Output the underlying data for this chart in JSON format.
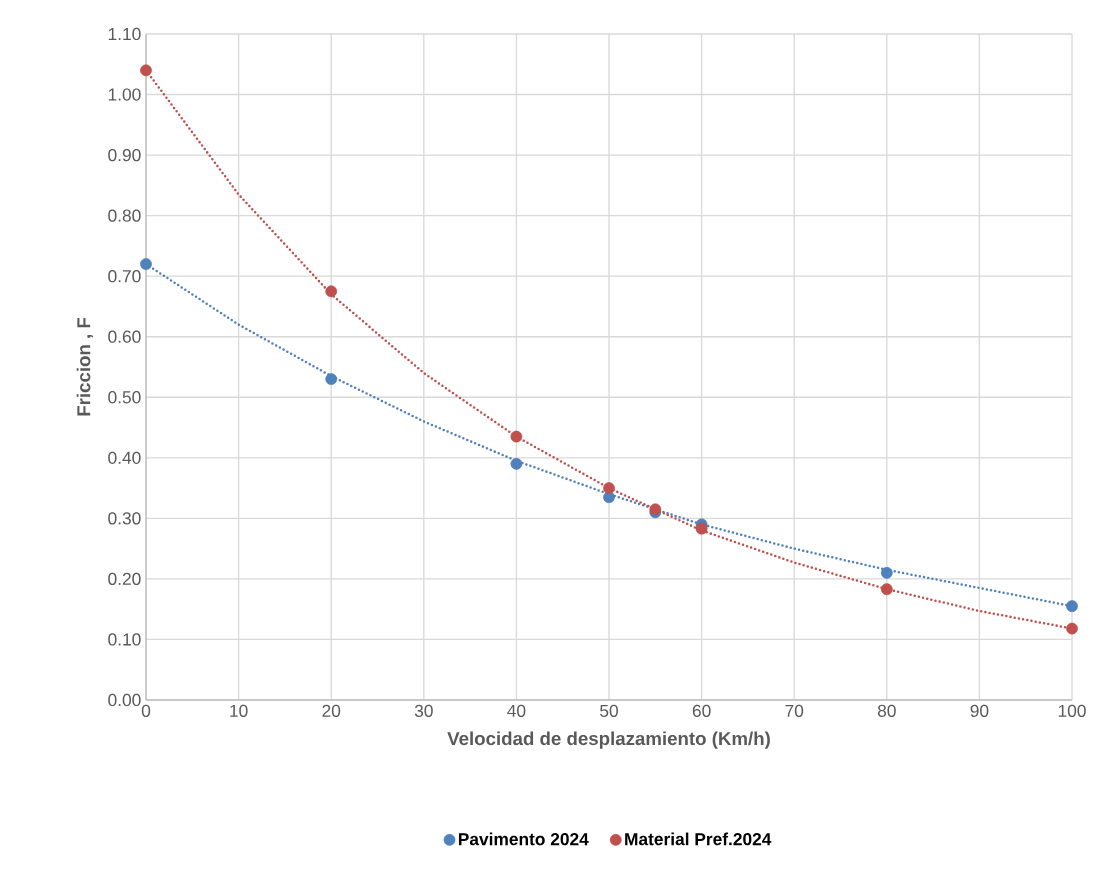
{
  "chart_data": {
    "type": "scatter",
    "xlabel": "Velocidad de desplazamiento (Km/h)",
    "ylabel": "Friccion , F",
    "xlim": [
      0,
      100
    ],
    "ylim": [
      0,
      1.1
    ],
    "xticks": [
      0,
      10,
      20,
      30,
      40,
      50,
      60,
      70,
      80,
      90,
      100
    ],
    "yticks": [
      {
        "value": 0,
        "label": "0.00"
      },
      {
        "value": 0.1,
        "label": "0.10"
      },
      {
        "value": 0.2,
        "label": "0.20"
      },
      {
        "value": 0.3,
        "label": "0.30"
      },
      {
        "value": 0.4,
        "label": "0.40"
      },
      {
        "value": 0.5,
        "label": "0.50"
      },
      {
        "value": 0.6,
        "label": "0.60"
      },
      {
        "value": 0.7,
        "label": "0.70"
      },
      {
        "value": 0.8,
        "label": "0.80"
      },
      {
        "value": 0.9,
        "label": "0.90"
      },
      {
        "value": 1.0,
        "label": "1.00"
      },
      {
        "value": 1.1,
        "label": "1.10"
      }
    ],
    "grid": true,
    "legend": "bottom",
    "marker": "circle",
    "series": [
      {
        "name": "Pavimento 2024",
        "color": "#4f81bd",
        "x": [
          0,
          20,
          40,
          50,
          55,
          60,
          80,
          100
        ],
        "values": [
          0.72,
          0.53,
          0.39,
          0.335,
          0.31,
          0.29,
          0.21,
          0.155
        ]
      },
      {
        "name": "Material Pref.2024",
        "color": "#c0504d",
        "x": [
          0,
          20,
          40,
          50,
          55,
          60,
          80,
          100
        ],
        "values": [
          1.04,
          0.675,
          0.435,
          0.35,
          0.315,
          0.283,
          0.183,
          0.118
        ]
      },
      {
        "type": "line",
        "color": "#4f81bd",
        "marker": "none",
        "line_style": "dotted",
        "x": [
          0,
          10,
          20,
          30,
          40,
          50,
          60,
          70,
          80,
          90,
          100
        ],
        "values": [
          0.72,
          0.62,
          0.535,
          0.46,
          0.395,
          0.34,
          0.29,
          0.25,
          0.215,
          0.185,
          0.155
        ]
      },
      {
        "type": "line",
        "color": "#c0504d",
        "marker": "none",
        "line_style": "dotted",
        "x": [
          0,
          10,
          20,
          30,
          40,
          50,
          60,
          70,
          80,
          90,
          100
        ],
        "values": [
          1.04,
          0.835,
          0.67,
          0.54,
          0.435,
          0.35,
          0.28,
          0.227,
          0.183,
          0.147,
          0.118
        ]
      }
    ]
  }
}
